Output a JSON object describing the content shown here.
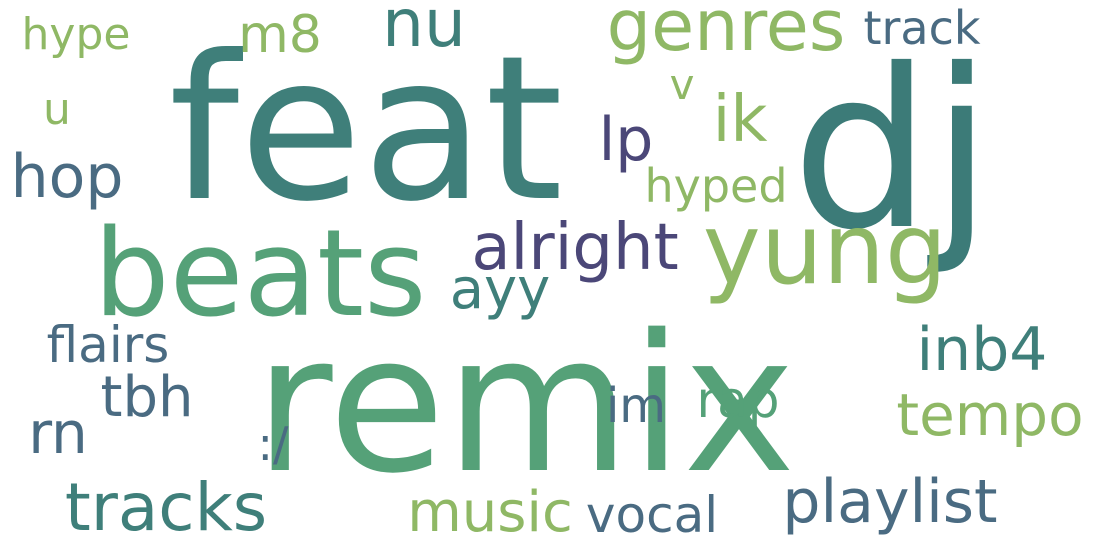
{
  "colors": {
    "teal": "#3f7f7a",
    "sea_green": "#55a178",
    "lime_green": "#8fb865",
    "slate": "#4a6b82",
    "purple": "#4b4778",
    "dark_teal": "#357a78"
  },
  "words": [
    {
      "text": "feat",
      "color": "#3f7f7a"
    },
    {
      "text": "dj",
      "color": "#3c7b78"
    },
    {
      "text": "remix",
      "color": "#55a178"
    },
    {
      "text": "beats",
      "color": "#55a178"
    },
    {
      "text": "yung",
      "color": "#8fb865"
    },
    {
      "text": "genres",
      "color": "#8fb865"
    },
    {
      "text": "nu",
      "color": "#3f7f7a"
    },
    {
      "text": "m8",
      "color": "#8fb865"
    },
    {
      "text": "hype",
      "color": "#8fb865"
    },
    {
      "text": "track",
      "color": "#4a6b82"
    },
    {
      "text": "u",
      "color": "#8fb865"
    },
    {
      "text": "v",
      "color": "#8fb865"
    },
    {
      "text": "ik",
      "color": "#8fb865"
    },
    {
      "text": "lp",
      "color": "#4b4778"
    },
    {
      "text": "hop",
      "color": "#4a6b82"
    },
    {
      "text": "hyped",
      "color": "#8fb865"
    },
    {
      "text": "alright",
      "color": "#4b4778"
    },
    {
      "text": "ayy",
      "color": "#3f7f7a"
    },
    {
      "text": "flairs",
      "color": "#4a6b82"
    },
    {
      "text": "inb4",
      "color": "#3f7f7a"
    },
    {
      "text": "tbh",
      "color": "#4a6b82"
    },
    {
      "text": "im",
      "color": "#4a6b82"
    },
    {
      "text": "rap",
      "color": "#55a178"
    },
    {
      "text": "tempo",
      "color": "#8fb865"
    },
    {
      "text": "rn",
      "color": "#4a6b82"
    },
    {
      "text": ":/",
      "color": "#4a6b82"
    },
    {
      "text": "tracks",
      "color": "#3f7f7a"
    },
    {
      "text": "music",
      "color": "#8fb865"
    },
    {
      "text": "vocal",
      "color": "#4a6b82"
    },
    {
      "text": "playlist",
      "color": "#4a6b82"
    }
  ]
}
